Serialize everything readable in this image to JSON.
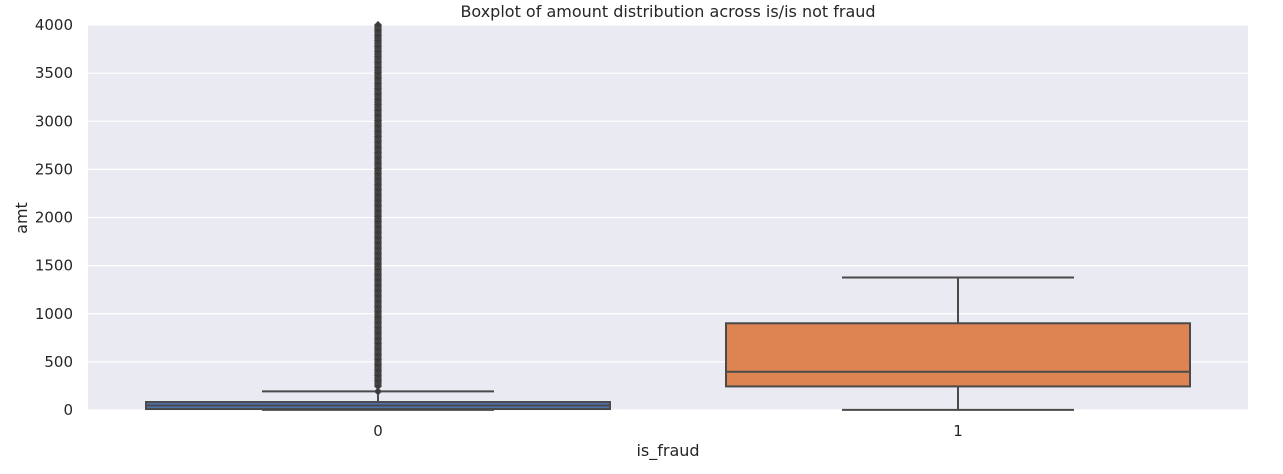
{
  "chart_data": {
    "type": "box",
    "title": "Boxplot of amount distribution across is/is not fraud",
    "xlabel": "is_fraud",
    "ylabel": "amt",
    "categories": [
      "0",
      "1"
    ],
    "ylim": [
      0,
      4000
    ],
    "yticks": [
      "0",
      "500",
      "1000",
      "1500",
      "2000",
      "2500",
      "3000",
      "3500",
      "4000"
    ],
    "grid": true,
    "boxes": [
      {
        "category": "0",
        "color": "#4c72b0",
        "whisker_low": 1,
        "q1": 10,
        "median": 47,
        "q3": 83,
        "whisker_high": 193,
        "outlier_range": [
          193,
          4000
        ]
      },
      {
        "category": "1",
        "color": "#dd8452",
        "whisker_low": 1,
        "q1": 245,
        "median": 397,
        "q3": 901,
        "whisker_high": 1377,
        "outlier_range": null
      }
    ],
    "colors": {
      "background": "#eaeaf2",
      "grid": "#ffffff",
      "line": "#4a4a4a",
      "text": "#262626"
    }
  }
}
